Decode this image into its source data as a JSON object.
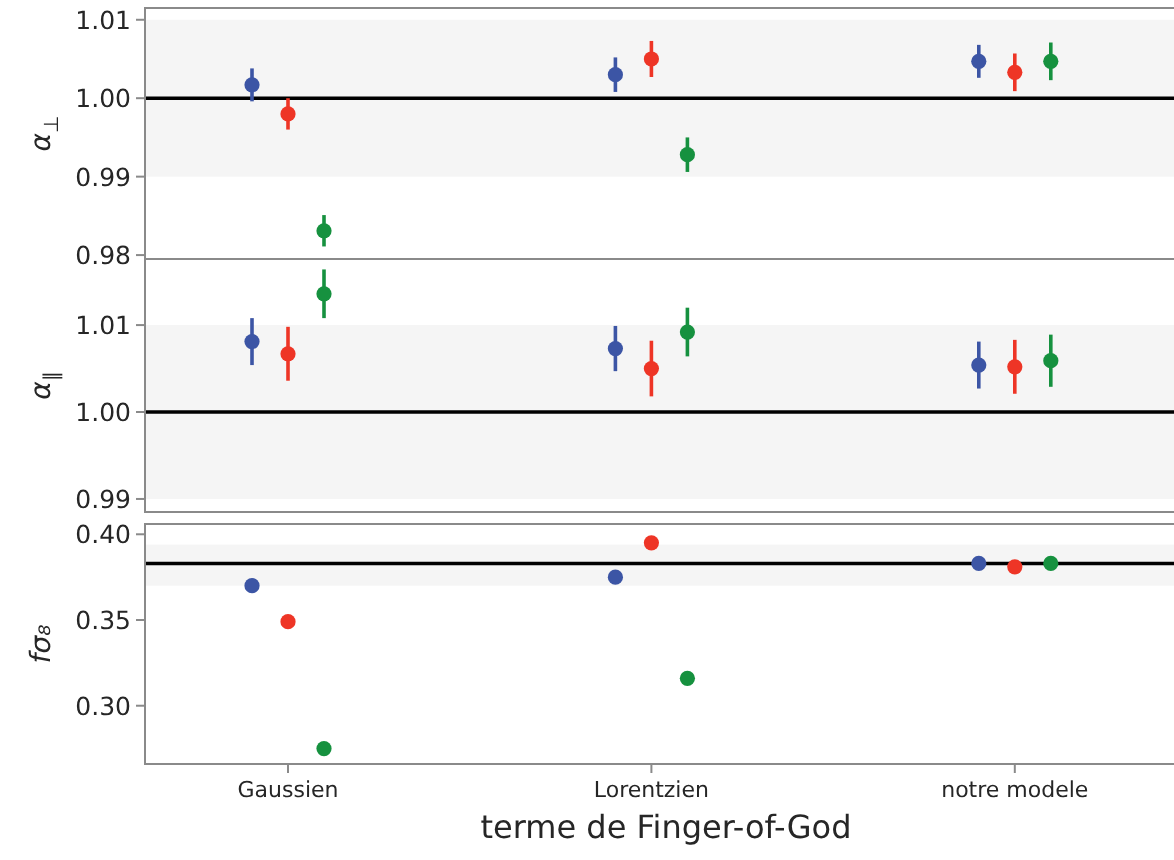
{
  "chart_data": [
    {
      "type": "scatter",
      "categories": [
        null,
        null,
        null
      ],
      "ylabel": "α$_{⊥}$",
      "marker": "circle",
      "tick_labels": "y",
      "ylim": [
        0.9795,
        1.0115
      ],
      "yticks": [
        1.01,
        {
          "value": 1,
          "label": "1.00"
        },
        0.99,
        0.98
      ],
      "ref_lines": [
        {
          "axis": "y",
          "value": 1,
          "color": "#000000"
        }
      ],
      "bands": [
        {
          "axis": "y",
          "from": 0.99,
          "to": 1.01,
          "color": "#f5f5f5"
        }
      ],
      "series": [
        {
          "color": "#3c55a5",
          "values": [
            1.0017,
            1.003,
            1.0047
          ],
          "errors": [
            0.0021,
            0.0022,
            0.0021
          ]
        },
        {
          "color": "#ee3526",
          "values": [
            0.998,
            1.005,
            1.0033
          ],
          "errors": [
            0.002,
            0.0023,
            0.0024
          ]
        },
        {
          "color": "#16913f",
          "values": [
            0.9831,
            0.9928,
            1.0047
          ],
          "errors": [
            0.002,
            0.0022,
            0.0024
          ]
        }
      ]
    },
    {
      "type": "scatter",
      "categories": [
        null,
        null,
        null
      ],
      "ylabel": "α$_{∥}$",
      "marker": "circle",
      "tick_labels": "y",
      "ylim": [
        0.9885,
        1.0176
      ],
      "yticks": [
        1.01,
        {
          "value": 1,
          "label": "1.00"
        },
        0.99
      ],
      "ref_lines": [
        {
          "axis": "y",
          "value": 1,
          "color": "#000000"
        }
      ],
      "bands": [
        {
          "axis": "y",
          "from": 0.99,
          "to": 1.01,
          "color": "#f5f5f5"
        }
      ],
      "series": [
        {
          "color": "#3c55a5",
          "values": [
            1.0081,
            1.0073,
            1.0054
          ],
          "errors": [
            0.0027,
            0.0026,
            0.0027
          ]
        },
        {
          "color": "#ee3526",
          "values": [
            1.0067,
            1.005,
            1.0052
          ],
          "errors": [
            0.0031,
            0.0032,
            0.0031
          ]
        },
        {
          "color": "#16913f",
          "values": [
            1.0136,
            1.0092,
            1.0059
          ],
          "errors": [
            0.0028,
            0.0028,
            0.003
          ]
        }
      ]
    },
    {
      "type": "scatter",
      "categories": [
        "Gaussien",
        "Lorentzien",
        "notre modele"
      ],
      "ylabel": "fσ₈",
      "xlabel": "terme de Finger-of-God",
      "marker": "circle",
      "ylim": [
        0.266,
        0.406
      ],
      "yticks": [
        {
          "value": 0.4,
          "label": "0.40"
        },
        0.35,
        {
          "value": 0.3,
          "label": "0.30"
        }
      ],
      "ref_lines": [
        {
          "axis": "y",
          "value": 0.383,
          "color": "#000000"
        }
      ],
      "bands": [
        {
          "axis": "y",
          "from": 0.37,
          "to": 0.394,
          "color": "#f5f5f5"
        }
      ],
      "series": [
        {
          "color": "#3c55a5",
          "values": [
            0.37,
            0.375,
            0.383
          ]
        },
        {
          "color": "#ee3526",
          "values": [
            0.349,
            0.395,
            0.381
          ]
        },
        {
          "color": "#16913f",
          "values": [
            0.275,
            0.316,
            0.383
          ]
        }
      ]
    }
  ]
}
